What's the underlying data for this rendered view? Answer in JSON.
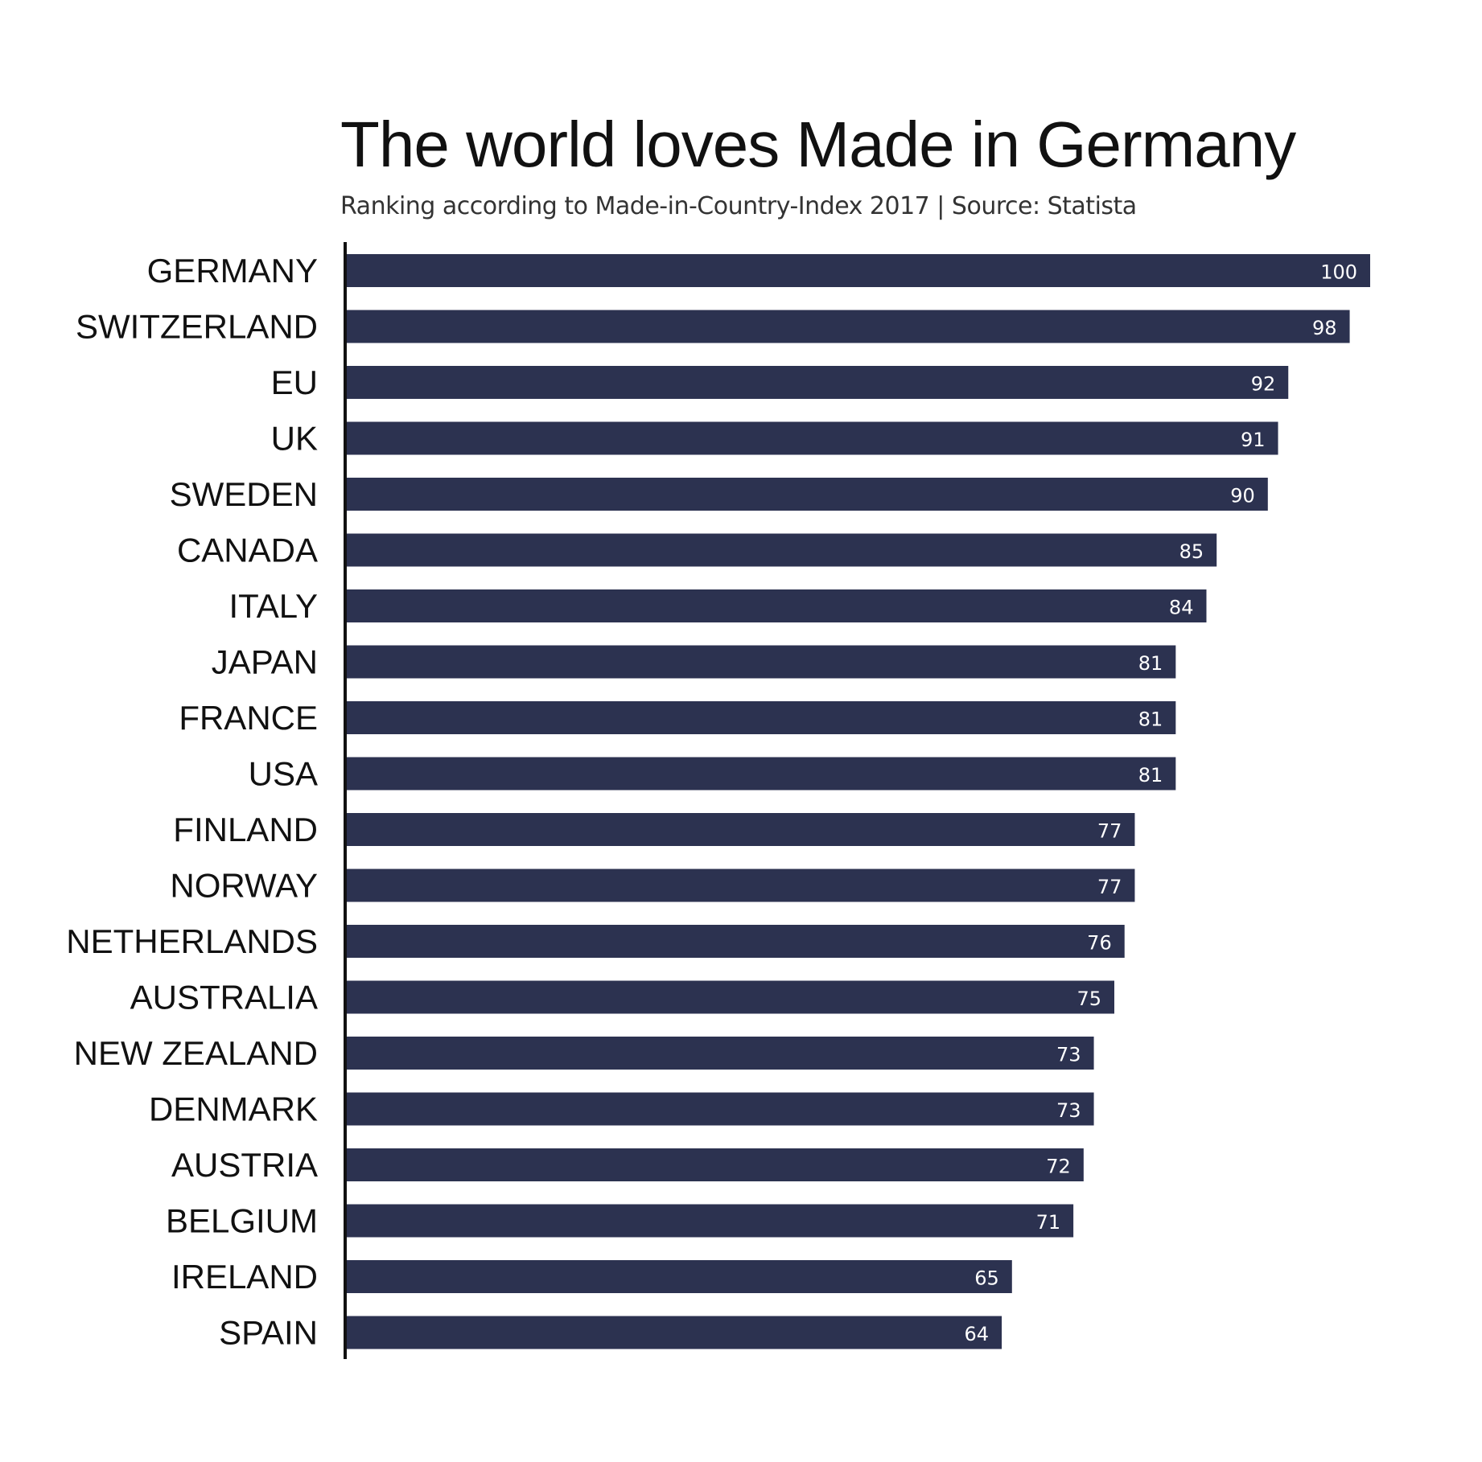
{
  "chart_data": {
    "type": "bar",
    "orientation": "horizontal",
    "title": "The world loves Made in Germany",
    "subtitle": "Ranking according to Made-in-Country-Index 2017 | Source: Statista",
    "categories": [
      "GERMANY",
      "SWITZERLAND",
      "EU",
      "UK",
      "SWEDEN",
      "CANADA",
      "ITALY",
      "JAPAN",
      "FRANCE",
      "USA",
      "FINLAND",
      "NORWAY",
      "NETHERLANDS",
      "AUSTRALIA",
      "NEW ZEALAND",
      "DENMARK",
      "AUSTRIA",
      "BELGIUM",
      "IRELAND",
      "SPAIN"
    ],
    "values": [
      100,
      98,
      92,
      91,
      90,
      85,
      84,
      81,
      81,
      81,
      77,
      77,
      76,
      75,
      73,
      73,
      72,
      71,
      65,
      64
    ],
    "xlim": [
      0,
      100
    ],
    "grid": false,
    "legend": "none",
    "bar_color": "#2c3250",
    "value_label_color": "#ffffff",
    "axis_color": "#111111"
  }
}
